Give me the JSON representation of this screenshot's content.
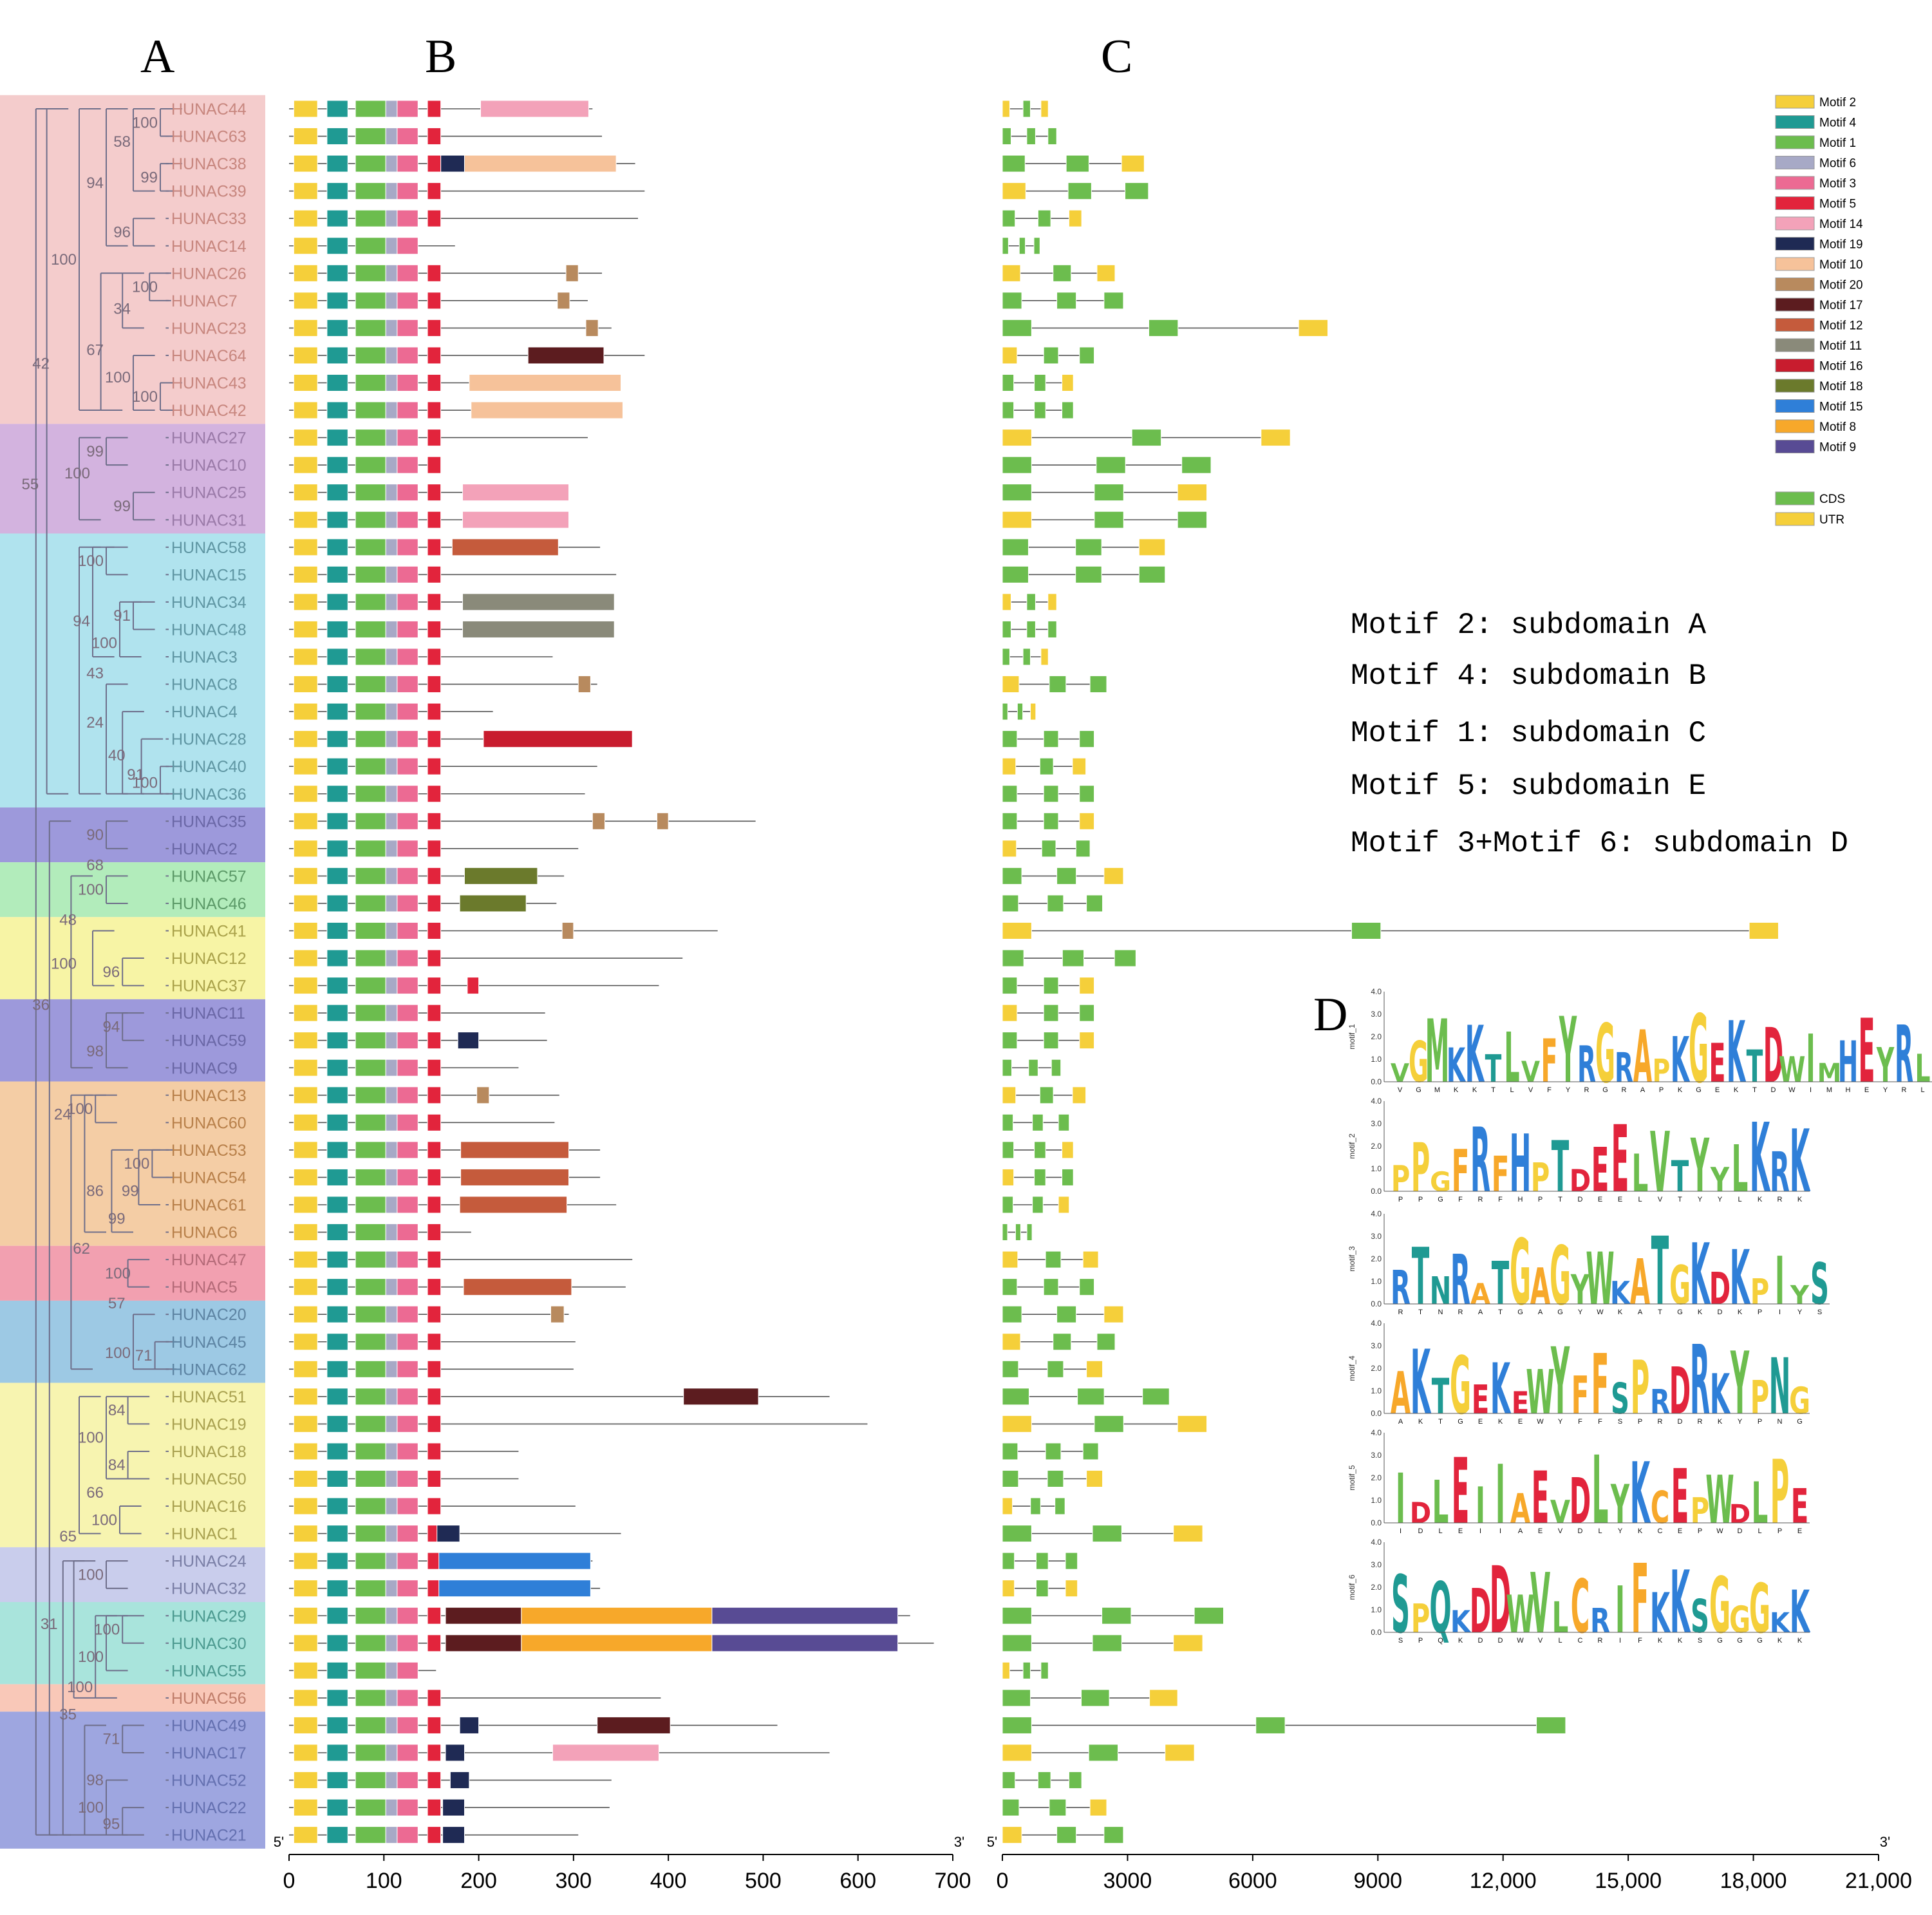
{
  "panels": {
    "A": "A",
    "B": "B",
    "C": "C",
    "D": "D"
  },
  "genes": [
    "HUNAC44",
    "HUNAC63",
    "HUNAC38",
    "HUNAC39",
    "HUNAC33",
    "HUNAC14",
    "HUNAC26",
    "HUNAC7",
    "HUNAC23",
    "HUNAC64",
    "HUNAC43",
    "HUNAC42",
    "HUNAC27",
    "HUNAC10",
    "HUNAC25",
    "HUNAC31",
    "HUNAC58",
    "HUNAC15",
    "HUNAC34",
    "HUNAC48",
    "HUNAC3",
    "HUNAC8",
    "HUNAC4",
    "HUNAC28",
    "HUNAC40",
    "HUNAC36",
    "HUNAC35",
    "HUNAC2",
    "HUNAC57",
    "HUNAC46",
    "HUNAC41",
    "HUNAC12",
    "HUNAC37",
    "HUNAC11",
    "HUNAC59",
    "HUNAC9",
    "HUNAC13",
    "HUNAC60",
    "HUNAC53",
    "HUNAC54",
    "HUNAC61",
    "HUNAC6",
    "HUNAC47",
    "HUNAC5",
    "HUNAC20",
    "HUNAC45",
    "HUNAC62",
    "HUNAC51",
    "HUNAC19",
    "HUNAC18",
    "HUNAC50",
    "HUNAC16",
    "HUNAC1",
    "HUNAC24",
    "HUNAC32",
    "HUNAC29",
    "HUNAC30",
    "HUNAC55",
    "HUNAC56",
    "HUNAC49",
    "HUNAC17",
    "HUNAC52",
    "HUNAC22",
    "HUNAC21"
  ],
  "groups": [
    {
      "from": 0,
      "to": 11,
      "color": "#f4cccc"
    },
    {
      "from": 12,
      "to": 15,
      "color": "#d3b3df"
    },
    {
      "from": 16,
      "to": 25,
      "color": "#b0e3ee"
    },
    {
      "from": 26,
      "to": 27,
      "color": "#9d99db"
    },
    {
      "from": 28,
      "to": 29,
      "color": "#b2ecbb"
    },
    {
      "from": 30,
      "to": 32,
      "color": "#f7f4a5"
    },
    {
      "from": 33,
      "to": 35,
      "color": "#9d99db"
    },
    {
      "from": 36,
      "to": 41,
      "color": "#f4cda5"
    },
    {
      "from": 42,
      "to": 43,
      "color": "#f2a0b0"
    },
    {
      "from": 44,
      "to": 46,
      "color": "#9dc9e4"
    },
    {
      "from": 47,
      "to": 52,
      "color": "#f7f4b0"
    },
    {
      "from": 53,
      "to": 54,
      "color": "#c9cdec"
    },
    {
      "from": 55,
      "to": 57,
      "color": "#a9e4dc"
    },
    {
      "from": 58,
      "to": 58,
      "color": "#f9c8b8"
    },
    {
      "from": 59,
      "to": 63,
      "color": "#9ea6e0"
    }
  ],
  "bootstrap": [
    {
      "text": "100",
      "row": 0.5,
      "depth": 3
    },
    {
      "text": "58",
      "row": 1.2,
      "depth": 2
    },
    {
      "text": "99",
      "row": 2.5,
      "depth": 3
    },
    {
      "text": "94",
      "row": 2.7,
      "depth": 1
    },
    {
      "text": "96",
      "row": 4.5,
      "depth": 2
    },
    {
      "text": "100",
      "row": 6.5,
      "depth": 3
    },
    {
      "text": "100",
      "row": 5.5,
      "depth": 0
    },
    {
      "text": "34",
      "row": 7.3,
      "depth": 2
    },
    {
      "text": "67",
      "row": 8.8,
      "depth": 1
    },
    {
      "text": "42",
      "row": 9.3,
      "depth": -1
    },
    {
      "text": "100",
      "row": 9.8,
      "depth": 2
    },
    {
      "text": "100",
      "row": 10.5,
      "depth": 3
    },
    {
      "text": "99",
      "row": 12.5,
      "depth": 1
    },
    {
      "text": "100",
      "row": 13.3,
      "depth": 0.5
    },
    {
      "text": "99",
      "row": 14.5,
      "depth": 2
    },
    {
      "text": "55",
      "row": 13.7,
      "depth": -1.4
    },
    {
      "text": "100",
      "row": 16.5,
      "depth": 1
    },
    {
      "text": "94",
      "row": 18.7,
      "depth": 0.5
    },
    {
      "text": "91",
      "row": 18.5,
      "depth": 2
    },
    {
      "text": "100",
      "row": 19.5,
      "depth": 1.5
    },
    {
      "text": "43",
      "row": 20.6,
      "depth": 1
    },
    {
      "text": "24",
      "row": 22.4,
      "depth": 1
    },
    {
      "text": "40",
      "row": 23.6,
      "depth": 1.8
    },
    {
      "text": "91",
      "row": 24.3,
      "depth": 2.5
    },
    {
      "text": "100",
      "row": 24.6,
      "depth": 3
    },
    {
      "text": "90",
      "row": 26.5,
      "depth": 1
    },
    {
      "text": "68",
      "row": 27.6,
      "depth": 1
    },
    {
      "text": "100",
      "row": 28.5,
      "depth": 1
    },
    {
      "text": "48",
      "row": 29.6,
      "depth": 0
    },
    {
      "text": "100",
      "row": 31.2,
      "depth": 0
    },
    {
      "text": "96",
      "row": 31.5,
      "depth": 1.6
    },
    {
      "text": "36",
      "row": 32.7,
      "depth": -1
    },
    {
      "text": "94",
      "row": 33.5,
      "depth": 1.6
    },
    {
      "text": "98",
      "row": 34.4,
      "depth": 1
    },
    {
      "text": "100",
      "row": 36.5,
      "depth": 0.6
    },
    {
      "text": "24",
      "row": 36.7,
      "depth": -0.2
    },
    {
      "text": "100",
      "row": 38.5,
      "depth": 2.7
    },
    {
      "text": "99",
      "row": 39.5,
      "depth": 2.3
    },
    {
      "text": "86",
      "row": 39.5,
      "depth": 1
    },
    {
      "text": "99",
      "row": 40.5,
      "depth": 1.8
    },
    {
      "text": "62",
      "row": 41.6,
      "depth": 0.5
    },
    {
      "text": "100",
      "row": 42.5,
      "depth": 2
    },
    {
      "text": "57",
      "row": 43.6,
      "depth": 1.8
    },
    {
      "text": "100",
      "row": 45.4,
      "depth": 2
    },
    {
      "text": "71",
      "row": 45.5,
      "depth": 2.8
    },
    {
      "text": "84",
      "row": 47.5,
      "depth": 1.8
    },
    {
      "text": "100",
      "row": 48.5,
      "depth": 1
    },
    {
      "text": "84",
      "row": 49.5,
      "depth": 1.8
    },
    {
      "text": "66",
      "row": 50.5,
      "depth": 1
    },
    {
      "text": "100",
      "row": 51.5,
      "depth": 1.5
    },
    {
      "text": "65",
      "row": 52.1,
      "depth": 0
    },
    {
      "text": "100",
      "row": 53.5,
      "depth": 1
    },
    {
      "text": "31",
      "row": 55.3,
      "depth": -0.7
    },
    {
      "text": "100",
      "row": 55.5,
      "depth": 1.6
    },
    {
      "text": "100",
      "row": 56.5,
      "depth": 1
    },
    {
      "text": "100",
      "row": 57.6,
      "depth": 0.6
    },
    {
      "text": "35",
      "row": 58.6,
      "depth": 0
    },
    {
      "text": "71",
      "row": 59.5,
      "depth": 1.6
    },
    {
      "text": "98",
      "row": 61.0,
      "depth": 1
    },
    {
      "text": "100",
      "row": 62.0,
      "depth": 1
    },
    {
      "text": "95",
      "row": 62.6,
      "depth": 1.6
    }
  ],
  "motifs": {
    "legend": [
      {
        "label": "Motif 2",
        "color": "#f5cf3a"
      },
      {
        "label": "Motif 4",
        "color": "#1f9a93"
      },
      {
        "label": "Motif 1",
        "color": "#6cbd4e"
      },
      {
        "label": "Motif 6",
        "color": "#a7a9c6"
      },
      {
        "label": "Motif 3",
        "color": "#ec6a93"
      },
      {
        "label": "Motif 5",
        "color": "#e2243c"
      },
      {
        "label": "Motif 14",
        "color": "#f3a2b9"
      },
      {
        "label": "Motif 19",
        "color": "#1f2a54"
      },
      {
        "label": "Motif 10",
        "color": "#f6c29a"
      },
      {
        "label": "Motif 20",
        "color": "#b88a5e"
      },
      {
        "label": "Motif 17",
        "color": "#5c1c1f"
      },
      {
        "label": "Motif 12",
        "color": "#c55b3c"
      },
      {
        "label": "Motif 11",
        "color": "#8a8a7a"
      },
      {
        "label": "Motif 16",
        "color": "#c81c2e"
      },
      {
        "label": "Motif 18",
        "color": "#6b7a2c"
      },
      {
        "label": "Motif 15",
        "color": "#2f7fd8"
      },
      {
        "label": "Motif 8",
        "color": "#f7a82a"
      },
      {
        "label": "Motif 9",
        "color": "#584b94"
      }
    ],
    "axis": {
      "min": 0,
      "max": 700,
      "ticks": [
        0,
        100,
        200,
        300,
        400,
        500,
        600,
        700
      ],
      "left_end": "5'",
      "right_end": "3'"
    }
  },
  "gene_structure": {
    "legend": [
      {
        "label": "CDS",
        "color": "#6cbd4e"
      },
      {
        "label": "UTR",
        "color": "#f5cf3a"
      }
    ],
    "axis": {
      "min": 0,
      "max": 21000,
      "ticks": [
        0,
        3000,
        6000,
        9000,
        12000,
        15000,
        18000,
        21000
      ],
      "tick_labels": [
        "0",
        "3000",
        "6000",
        "9000",
        "12,000",
        "15,000",
        "18,000",
        "21,000"
      ],
      "left_end": "5'",
      "right_end": "3'"
    }
  },
  "subdomains": [
    "Motif 2: subdomain A",
    "Motif 4: subdomain B",
    "Motif 1: subdomain C",
    "Motif 5: subdomain E",
    "Motif 3+Motif 6: subdomain D"
  ],
  "logos": [
    {
      "name": "motif_1",
      "ticks": [
        "4.0",
        "3.0",
        "2.0",
        "1.0",
        "0.0"
      ],
      "consensus": "VGMKKTLVFYRGRAPKGEKTDWIMHEYRL"
    },
    {
      "name": "motif_2",
      "ticks": [
        "4.0",
        "3.0",
        "2.0",
        "1.0",
        "0.0"
      ],
      "consensus": "PPGFRFHPTDEELVTYYLKRK"
    },
    {
      "name": "motif_3",
      "ticks": [
        "4.0",
        "3.0",
        "2.0",
        "1.0",
        "0.0"
      ],
      "consensus": "RTNRATGAGYWKATGKDKPIYS"
    },
    {
      "name": "motif_4",
      "ticks": [
        "4.0",
        "3.0",
        "2.0",
        "1.0",
        "0.0"
      ],
      "consensus": "AKTGEKEWYFFSPRDRKYPNG"
    },
    {
      "name": "motif_5",
      "ticks": [
        "4.0",
        "3.0",
        "2.0",
        "1.0",
        "0.0"
      ],
      "consensus": "IDLEIIAEVDLYKCEPWDLPE"
    },
    {
      "name": "motif_6",
      "ticks": [
        "4.0",
        "3.0",
        "2.0",
        "1.0",
        "0.0"
      ],
      "consensus": "SPQKDDWVLCRIFKKSGGGKK"
    }
  ]
}
